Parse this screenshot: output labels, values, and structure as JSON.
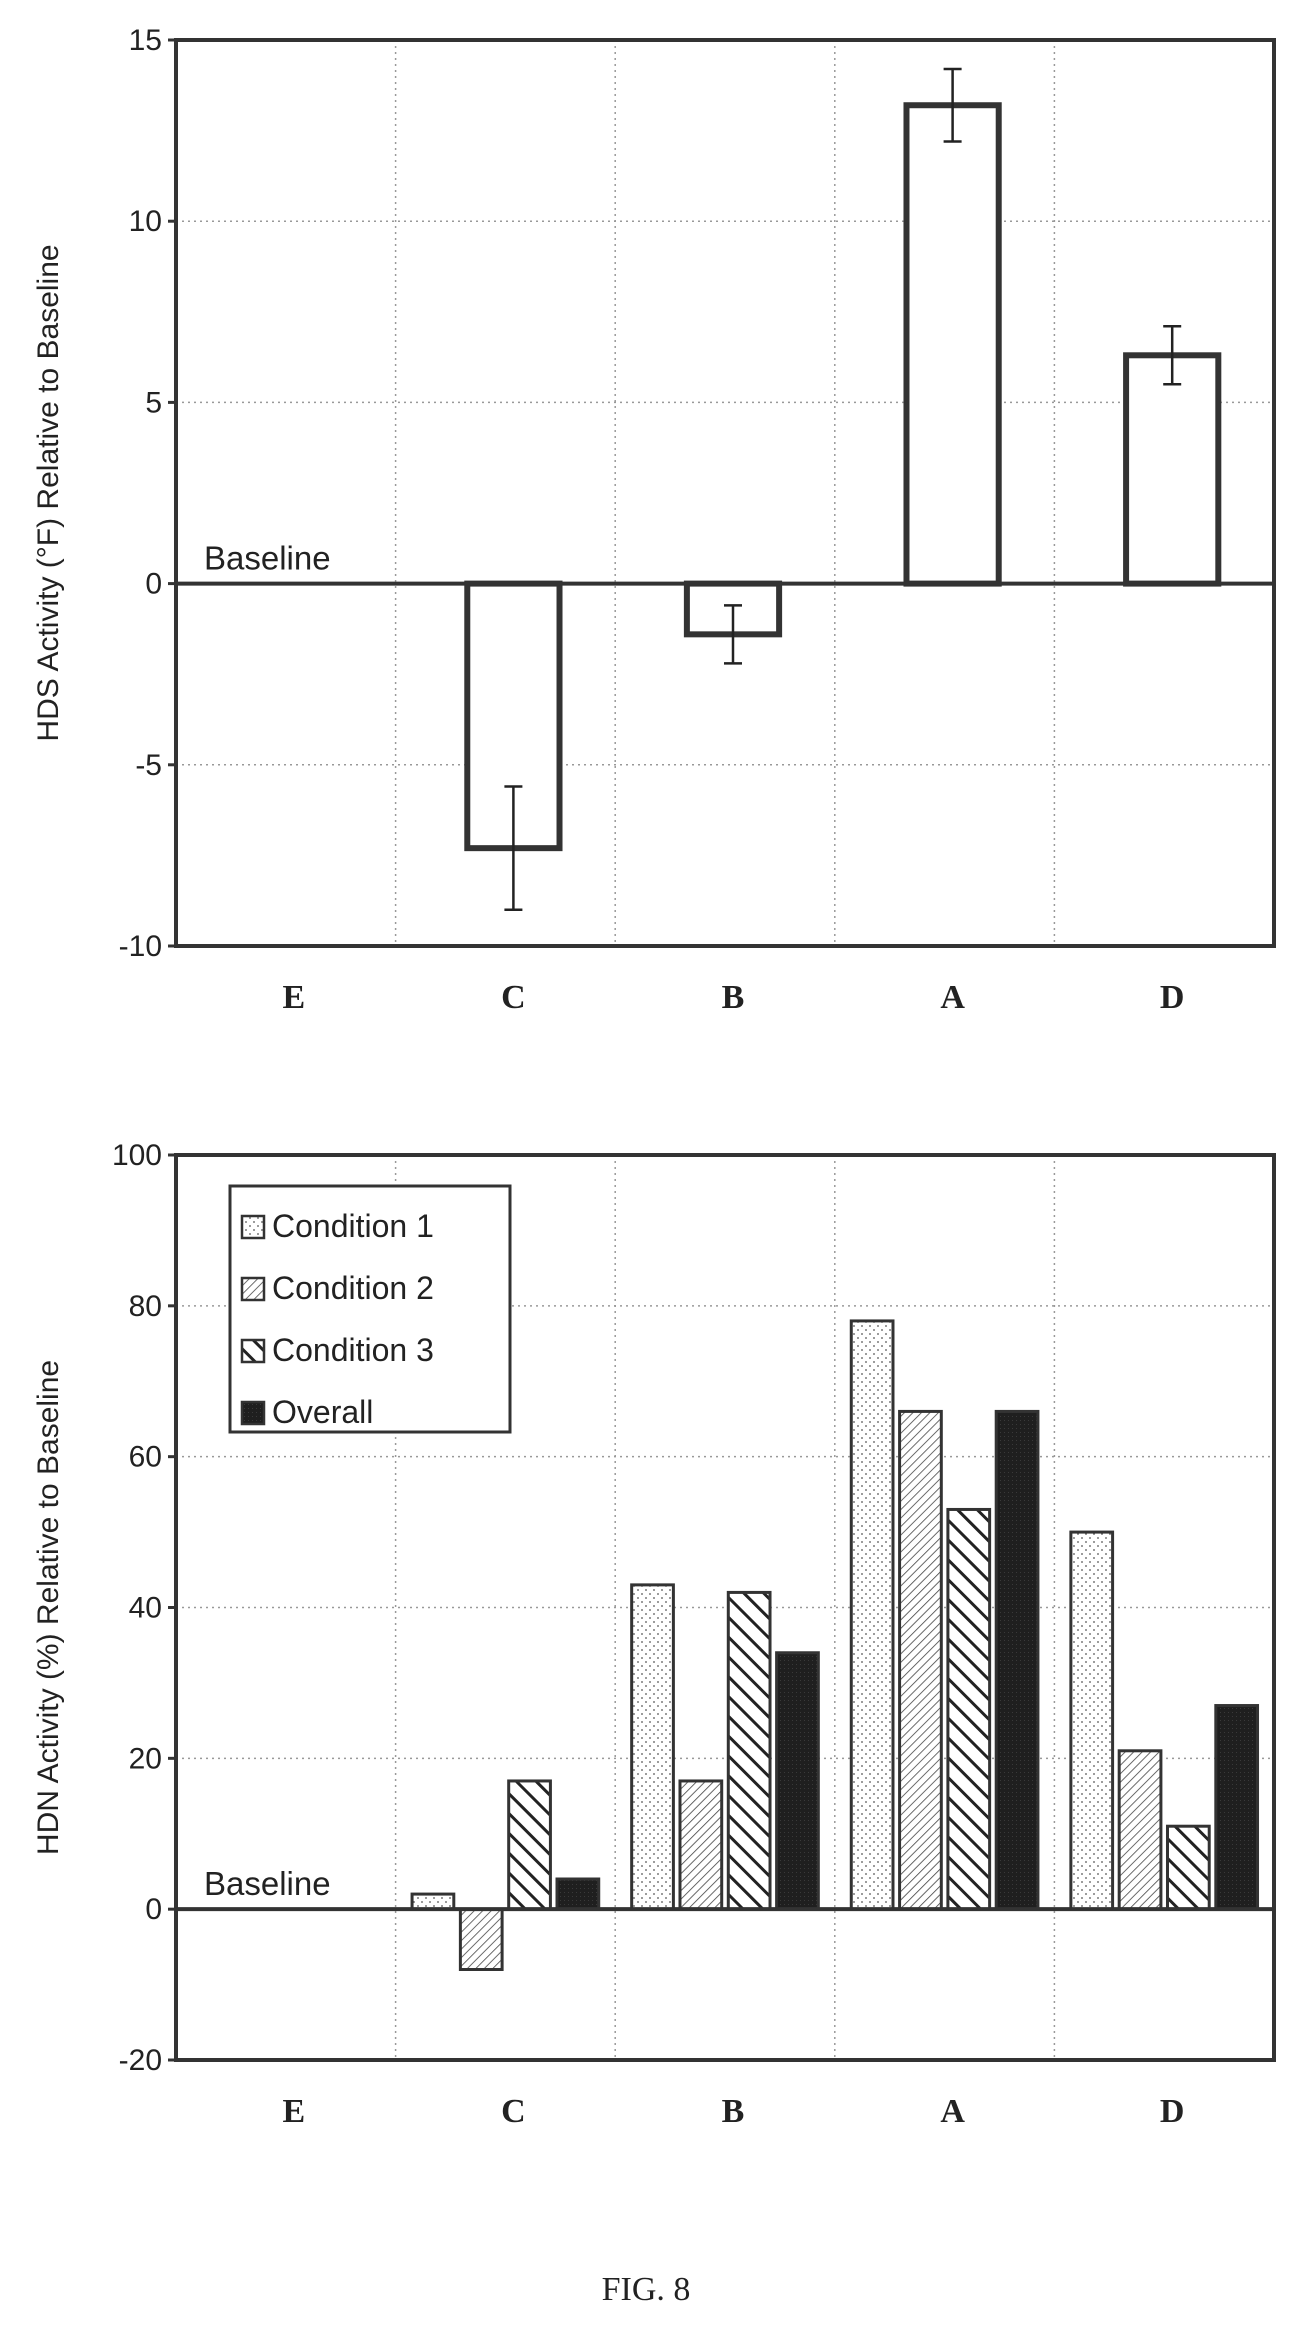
{
  "chart_data": [
    {
      "type": "bar",
      "categories": [
        "E",
        "C",
        "B",
        "A",
        "D"
      ],
      "series": [
        {
          "values": [
            null,
            -7.3,
            -1.4,
            13.2,
            6.3
          ],
          "errors": [
            null,
            1.7,
            0.8,
            1.0,
            0.8
          ]
        }
      ],
      "ylabel": "HDS Activity (°F) Relative to Baseline",
      "ylim": [
        -10,
        15
      ],
      "yticks": [
        "15",
        "10",
        "5",
        "0",
        "-5",
        "-10"
      ],
      "baseline_label": "Baseline",
      "grid": true
    },
    {
      "type": "bar",
      "categories": [
        "E",
        "C",
        "B",
        "A",
        "D"
      ],
      "series": [
        {
          "name": "Condition 1",
          "values": [
            null,
            2,
            43,
            78,
            50
          ]
        },
        {
          "name": "Condition 2",
          "values": [
            null,
            -8,
            17,
            66,
            21
          ]
        },
        {
          "name": "Condition 3",
          "values": [
            null,
            17,
            42,
            53,
            11
          ]
        },
        {
          "name": "Overall",
          "values": [
            null,
            4,
            34,
            66,
            27
          ]
        }
      ],
      "ylabel": "HDN Activity (%) Relative to Baseline",
      "ylim": [
        -20,
        100
      ],
      "yticks": [
        "100",
        "80",
        "60",
        "40",
        "20",
        "0",
        "-20"
      ],
      "baseline_label": "Baseline",
      "legend": "top-left",
      "grid": true
    }
  ],
  "caption": "FIG. 8"
}
